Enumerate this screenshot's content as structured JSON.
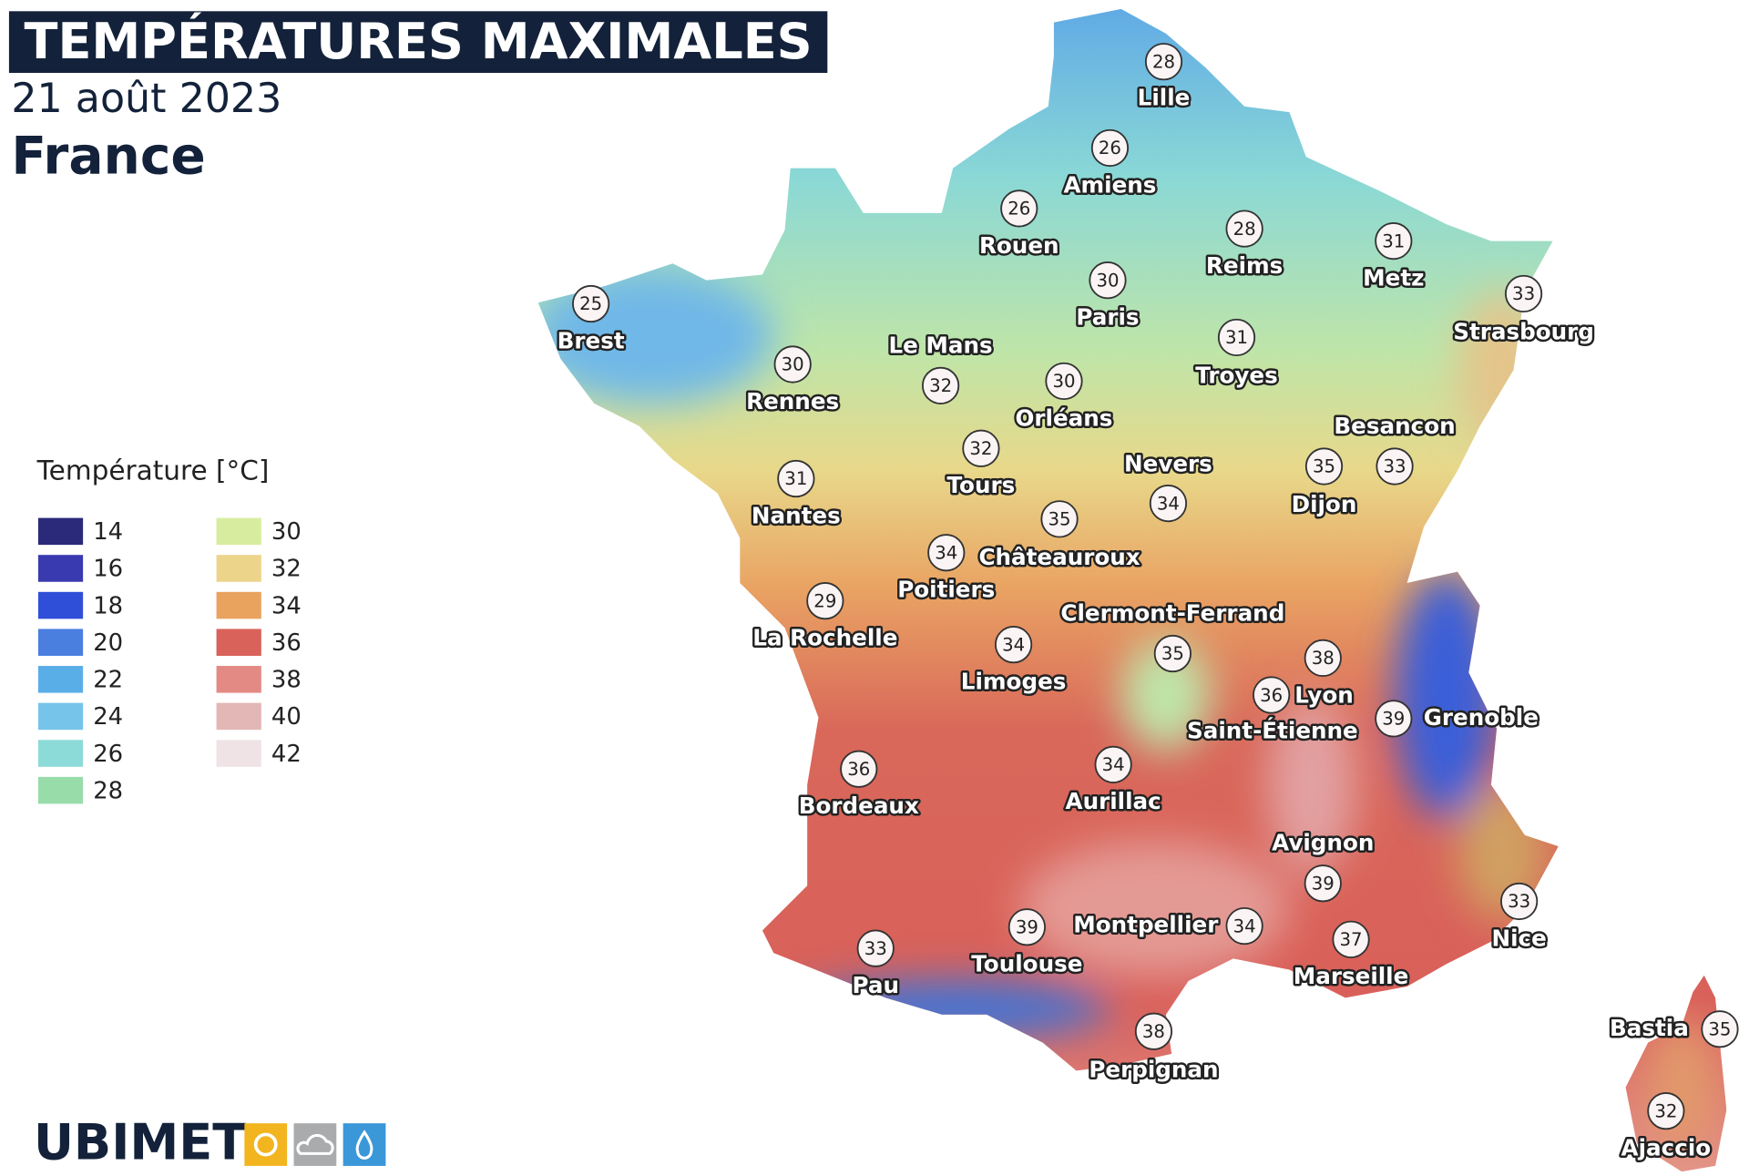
{
  "header": {
    "title": "TEMPÉRATURES MAXIMALES",
    "date": "21 août 2023",
    "region": "France"
  },
  "legend": {
    "title": "Température [°C]",
    "items": [
      {
        "value": 14,
        "color": "#2b2a7a"
      },
      {
        "value": 16,
        "color": "#3a3ab0"
      },
      {
        "value": 18,
        "color": "#2f4fd8"
      },
      {
        "value": 20,
        "color": "#4a7fe0"
      },
      {
        "value": 22,
        "color": "#5aaee8"
      },
      {
        "value": 24,
        "color": "#76c4ea"
      },
      {
        "value": 26,
        "color": "#8ddbd8"
      },
      {
        "value": 28,
        "color": "#98dcaa"
      },
      {
        "value": 30,
        "color": "#d8eca0"
      },
      {
        "value": 32,
        "color": "#ecd48a"
      },
      {
        "value": 34,
        "color": "#e9a35f"
      },
      {
        "value": 36,
        "color": "#d9625a"
      },
      {
        "value": 38,
        "color": "#e38a85"
      },
      {
        "value": 40,
        "color": "#e3b7b5"
      },
      {
        "value": 42,
        "color": "#efe3e6"
      }
    ]
  },
  "cities": [
    {
      "name": "Lille",
      "value": 28
    },
    {
      "name": "Amiens",
      "value": 26
    },
    {
      "name": "Rouen",
      "value": 26
    },
    {
      "name": "Reims",
      "value": 28
    },
    {
      "name": "Metz",
      "value": 31
    },
    {
      "name": "Paris",
      "value": 30
    },
    {
      "name": "Strasbourg",
      "value": 33
    },
    {
      "name": "Brest",
      "value": 25
    },
    {
      "name": "Troyes",
      "value": 31
    },
    {
      "name": "Le Mans",
      "value": 32
    },
    {
      "name": "Rennes",
      "value": 30
    },
    {
      "name": "Orléans",
      "value": 30
    },
    {
      "name": "Besancon",
      "value": 33
    },
    {
      "name": "Tours",
      "value": 32
    },
    {
      "name": "Nevers",
      "value": 34
    },
    {
      "name": "Nantes",
      "value": 31
    },
    {
      "name": "Dijon",
      "value": 35
    },
    {
      "name": "Châteauroux",
      "value": 35
    },
    {
      "name": "Poitiers",
      "value": 34
    },
    {
      "name": "La Rochelle",
      "value": 29
    },
    {
      "name": "Clermont-Ferrand",
      "value": 35
    },
    {
      "name": "Limoges",
      "value": 34
    },
    {
      "name": "Lyon",
      "value": 38
    },
    {
      "name": "Saint-Étienne",
      "value": 36
    },
    {
      "name": "Grenoble",
      "value": 39
    },
    {
      "name": "Bordeaux",
      "value": 36
    },
    {
      "name": "Aurillac",
      "value": 34
    },
    {
      "name": "Avignon",
      "value": 39
    },
    {
      "name": "Nice",
      "value": 33
    },
    {
      "name": "Montpellier",
      "value": 34
    },
    {
      "name": "Toulouse",
      "value": 39
    },
    {
      "name": "Marseille",
      "value": 37
    },
    {
      "name": "Pau",
      "value": 33
    },
    {
      "name": "Perpignan",
      "value": 38
    },
    {
      "name": "Bastia",
      "value": 35
    },
    {
      "name": "Ajaccio",
      "value": 32
    }
  ],
  "logo": "UBIMET"
}
